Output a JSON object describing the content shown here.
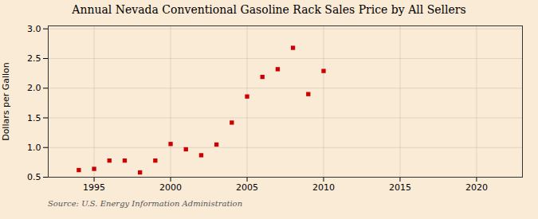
{
  "chart_data": {
    "type": "scatter",
    "title": "Annual Nevada Conventional Gasoline Rack Sales Price by All Sellers",
    "ylabel": "Dollars per Gallon",
    "source": "Source: U.S. Energy Information Administration",
    "x": [
      1994,
      1995,
      1996,
      1997,
      1998,
      1999,
      2000,
      2001,
      2002,
      2003,
      2004,
      2005,
      2006,
      2007,
      2008,
      2009,
      2010
    ],
    "values": [
      0.62,
      0.64,
      0.78,
      0.78,
      0.58,
      0.78,
      1.06,
      0.97,
      0.87,
      1.05,
      1.42,
      1.86,
      2.19,
      2.32,
      2.68,
      1.9,
      2.29
    ],
    "color": "#cc0000",
    "marker": "square",
    "xlim": [
      1992,
      2023
    ],
    "ylim": [
      0.5,
      3.05
    ],
    "xticks": [
      1995,
      2000,
      2005,
      2010,
      2015,
      2020
    ],
    "yticks": [
      0.5,
      {
        "value": 1.0,
        "label": "1.0"
      },
      1.5,
      {
        "value": 2.0,
        "label": "2.0"
      },
      2.5,
      {
        "value": 3.0,
        "label": "3.0"
      }
    ],
    "grid": true
  }
}
